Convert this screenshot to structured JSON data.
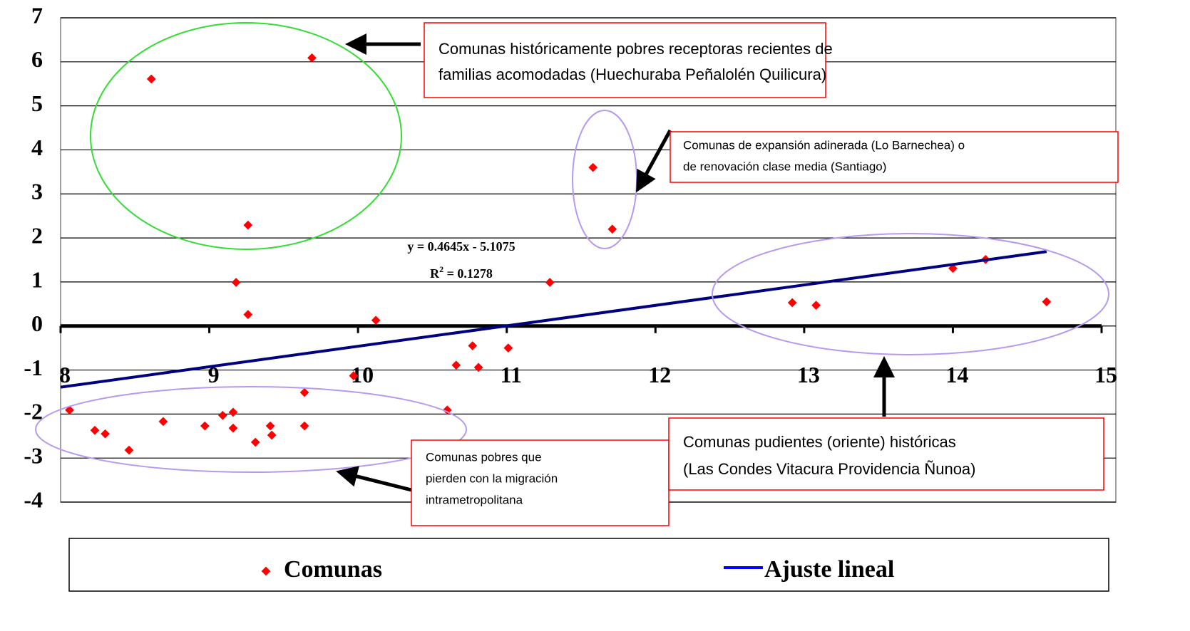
{
  "chart_data": {
    "type": "scatter",
    "xlim": [
      8,
      15
    ],
    "xticks": [
      8,
      9,
      10,
      11,
      12,
      13,
      14,
      15
    ],
    "ylim": [
      -4,
      7
    ],
    "yticks": [
      -4,
      -3,
      -2,
      -1,
      0,
      1,
      2,
      3,
      4,
      5,
      6,
      7
    ],
    "grid": true,
    "series": [
      {
        "name": "Comunas",
        "color": "#ff0000",
        "x": [
          8.61,
          9.69,
          9.26,
          9.18,
          9.26,
          10.12,
          11.29,
          11.58,
          11.71,
          10.77,
          10.66,
          10.81,
          11.01,
          9.97,
          8.06,
          8.23,
          8.3,
          8.46,
          8.69,
          8.97,
          9.09,
          9.16,
          9.16,
          9.31,
          9.41,
          9.42,
          9.64,
          9.64,
          10.6,
          12.92,
          13.08,
          14.0,
          14.22,
          14.63
        ],
        "values": [
          5.61,
          6.09,
          2.29,
          0.99,
          0.26,
          0.13,
          0.99,
          3.6,
          2.2,
          -0.45,
          -0.89,
          -0.94,
          -0.5,
          -1.13,
          -1.91,
          -2.37,
          -2.45,
          -2.82,
          -2.17,
          -2.27,
          -2.03,
          -1.96,
          -2.32,
          -2.64,
          -2.27,
          -2.48,
          -1.51,
          -2.27,
          -1.91,
          0.53,
          0.47,
          1.31,
          1.51,
          0.55
        ]
      },
      {
        "name": "Ajuste lineal",
        "color": "#000080",
        "x": [
          8,
          14.63
        ],
        "values": [
          -1.39,
          1.69
        ]
      }
    ],
    "equation": "y = 0.4645x - 5.1075",
    "r_squared": {
      "symbol": "R",
      "exponent": "2",
      "rest": " = 0.1278"
    },
    "annotations": [
      {
        "lines": [
          "Comunas históricamente pobres receptoras recientes de",
          "familias acomodadas (Huechuraba Peñalolén Quilicura)"
        ]
      },
      {
        "lines": [
          "Comunas de expansión adinerada  (Lo Barnechea) o",
          "de renovación clase media (Santiago)"
        ]
      },
      {
        "lines": [
          "Comunas pobres que",
          "pierden con la migración",
          "intrametropolitana"
        ]
      },
      {
        "lines": [
          "Comunas pudientes (oriente) históricas",
          "(Las Condes Vitacura Providencia Ñunoa)"
        ]
      }
    ]
  }
}
